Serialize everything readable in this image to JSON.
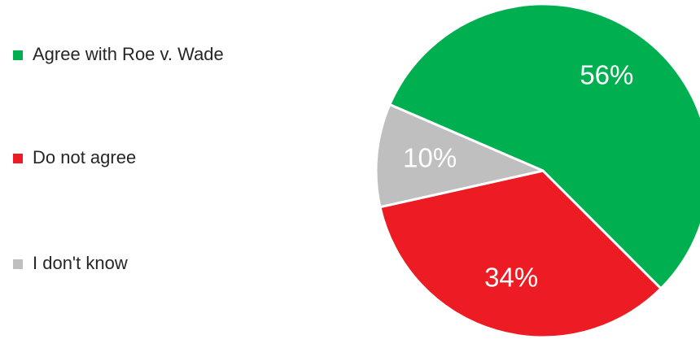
{
  "chart_data": {
    "type": "pie",
    "categories": [
      "Agree with Roe v. Wade",
      "Do not agree",
      "I don't know"
    ],
    "values": [
      56,
      34,
      10
    ],
    "value_labels": [
      "56%",
      "34%",
      "10%"
    ],
    "colors": [
      "#00b050",
      "#ed1c24",
      "#bfbfbf"
    ],
    "legend": "left"
  }
}
